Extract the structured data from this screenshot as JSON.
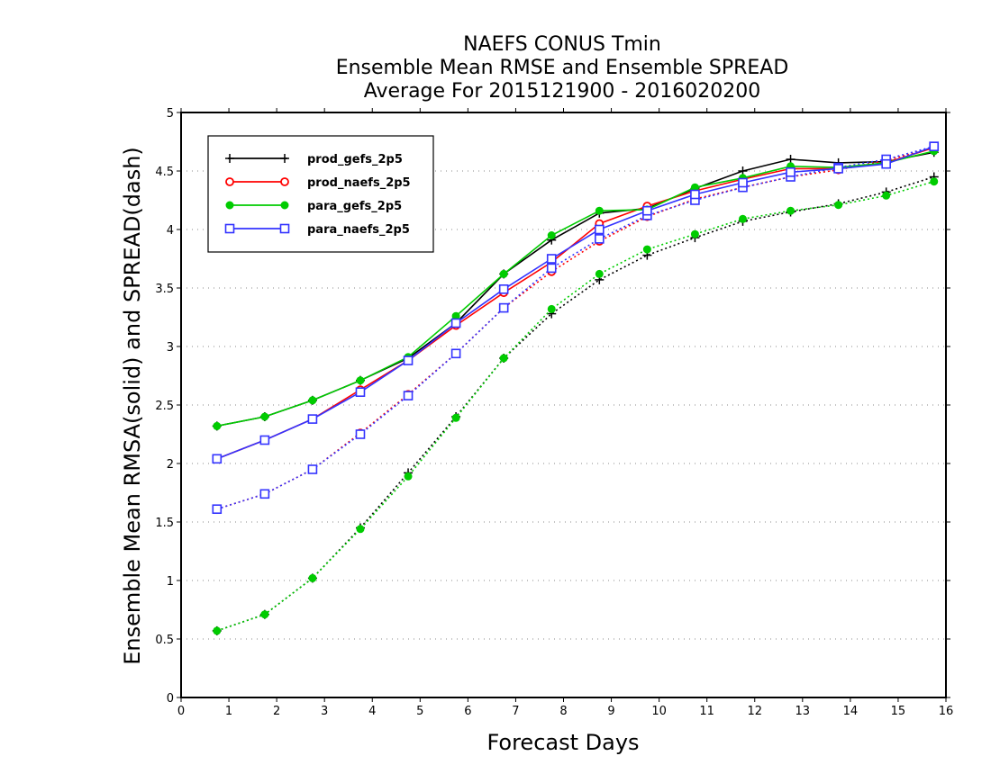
{
  "chart_data": {
    "type": "line",
    "title_lines": [
      "NAEFS CONUS Tmin",
      "Ensemble Mean RMSE and Ensemble SPREAD",
      "Average For 2015121900 - 2016020200"
    ],
    "xlabel": "Forecast Days",
    "ylabel": "Ensemble Mean RMSA(solid) and SPREAD(dash)",
    "xlim": [
      0,
      16
    ],
    "ylim": [
      0,
      5
    ],
    "x_ticks": [
      0,
      1,
      2,
      3,
      4,
      5,
      6,
      7,
      8,
      9,
      10,
      11,
      12,
      13,
      14,
      15,
      16
    ],
    "y_ticks": [
      "0",
      "0.5",
      "1",
      "1.5",
      "2",
      "2.5",
      "3",
      "3.5",
      "4",
      "4.5",
      "5"
    ],
    "grid": "horizontal dotted",
    "legend_position": "top-left",
    "x": [
      0.75,
      1.75,
      2.75,
      3.75,
      4.75,
      5.75,
      6.75,
      7.75,
      8.75,
      9.75,
      10.75,
      11.75,
      12.75,
      13.75,
      14.75,
      15.75
    ],
    "series": [
      {
        "name": "prod_gefs_2p5",
        "color": "#000000",
        "marker": "plus",
        "rmse": [
          2.32,
          2.4,
          2.54,
          2.71,
          2.9,
          3.2,
          3.62,
          3.91,
          4.14,
          4.18,
          4.35,
          4.5,
          4.6,
          4.57,
          4.58,
          4.66
        ],
        "spread": [
          0.57,
          0.71,
          1.02,
          1.45,
          1.92,
          2.4,
          2.9,
          3.28,
          3.57,
          3.78,
          3.93,
          4.07,
          4.15,
          4.22,
          4.32,
          4.45
        ]
      },
      {
        "name": "prod_naefs_2p5",
        "color": "#ff0000",
        "marker": "circle",
        "rmse": [
          2.04,
          2.2,
          2.38,
          2.63,
          2.88,
          3.18,
          3.46,
          3.72,
          4.05,
          4.2,
          4.33,
          4.43,
          4.52,
          4.52,
          4.57,
          4.7
        ],
        "spread": [
          1.61,
          1.74,
          1.95,
          2.26,
          2.59,
          2.94,
          3.33,
          3.64,
          3.9,
          4.11,
          4.26,
          4.36,
          4.45,
          4.51,
          4.59,
          4.7
        ]
      },
      {
        "name": "para_gefs_2p5",
        "color": "#00cc00",
        "marker": "filled-circle",
        "rmse": [
          2.32,
          2.4,
          2.54,
          2.71,
          2.91,
          3.26,
          3.62,
          3.95,
          4.16,
          4.17,
          4.36,
          4.44,
          4.54,
          4.53,
          4.57,
          4.67
        ],
        "spread": [
          0.57,
          0.71,
          1.02,
          1.44,
          1.89,
          2.39,
          2.9,
          3.32,
          3.62,
          3.83,
          3.96,
          4.09,
          4.16,
          4.21,
          4.29,
          4.41
        ]
      },
      {
        "name": "para_naefs_2p5",
        "color": "#3333ff",
        "marker": "square",
        "rmse": [
          2.04,
          2.2,
          2.38,
          2.61,
          2.88,
          3.2,
          3.49,
          3.75,
          4.0,
          4.16,
          4.3,
          4.4,
          4.49,
          4.52,
          4.56,
          4.71
        ],
        "spread": [
          1.61,
          1.74,
          1.95,
          2.25,
          2.58,
          2.94,
          3.33,
          3.67,
          3.92,
          4.12,
          4.25,
          4.36,
          4.45,
          4.53,
          4.6,
          4.71
        ]
      }
    ]
  }
}
